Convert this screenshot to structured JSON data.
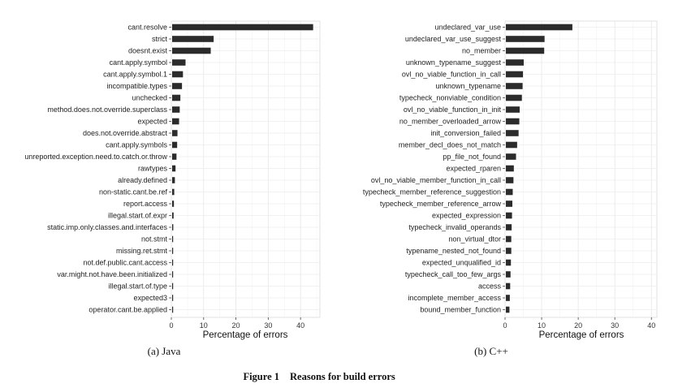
{
  "figure": {
    "caption_number": "Figure 1",
    "caption_text": "Reasons for build errors"
  },
  "chart_data": [
    {
      "type": "bar",
      "orientation": "horizontal",
      "subcaption": "(a) Java",
      "xlabel": "Percentage of errors",
      "ylabel": "",
      "xlim": [
        0,
        46
      ],
      "xticks": [
        0,
        10,
        20,
        30,
        40
      ],
      "grid": true,
      "bar_color": "#2b2b2b",
      "categories": [
        "cant.resolve",
        "strict",
        "doesnt.exist",
        "cant.apply.symbol",
        "cant.apply.symbol.1",
        "incompatible.types",
        "unchecked",
        "method.does.not.override.superclass",
        "expected",
        "does.not.override.abstract",
        "cant.apply.symbols",
        "unreported.exception.need.to.catch.or.throw",
        "rawtypes",
        "already.defined",
        "non-static.cant.be.ref",
        "report.access",
        "illegal.start.of.expr",
        "static.imp.only.classes.and.interfaces",
        "not.stmt",
        "missing.ret.stmt",
        "not.def.public.cant.access",
        "var.might.not.have.been.initialized",
        "illegal.start.of.type",
        "expected3",
        "operator.cant.be.applied"
      ],
      "values": [
        43.9,
        13.1,
        12.2,
        4.4,
        3.6,
        3.3,
        2.8,
        2.6,
        2.4,
        1.9,
        1.8,
        1.6,
        1.3,
        1.1,
        0.9,
        0.8,
        0.7,
        0.6,
        0.5,
        0.5,
        0.4,
        0.4,
        0.3,
        0.3,
        0.2
      ]
    },
    {
      "type": "bar",
      "orientation": "horizontal",
      "subcaption": "(b) C++",
      "xlabel": "Percentage of errors",
      "ylabel": "",
      "xlim": [
        0,
        41.5
      ],
      "xticks": [
        0,
        10,
        20,
        30,
        40
      ],
      "grid": true,
      "bar_color": "#2b2b2b",
      "categories": [
        "undeclared_var_use",
        "undeclared_var_use_suggest",
        "no_member",
        "unknown_typename_suggest",
        "ovl_no_viable_function_in_call",
        "unknown_typename",
        "typecheck_nonviable_condition",
        "ovl_no_viable_function_in_init",
        "no_member_overloaded_arrow",
        "init_conversion_failed",
        "member_decl_does_not_match",
        "pp_file_not_found",
        "expected_rparen",
        "ovl_no_viable_member_function_in_call",
        "typecheck_member_reference_suggestion",
        "typecheck_member_reference_arrow",
        "expected_expression",
        "typecheck_invalid_operands",
        "non_virtual_dtor",
        "typename_nested_not_found",
        "expected_unqualified_id",
        "typecheck_call_too_few_args",
        "access",
        "incomplete_member_access",
        "bound_member_function"
      ],
      "values": [
        18.4,
        10.8,
        10.7,
        5.1,
        4.9,
        4.8,
        4.6,
        4.0,
        3.9,
        3.7,
        3.3,
        3.0,
        2.4,
        2.3,
        2.1,
        2.0,
        1.9,
        1.8,
        1.7,
        1.7,
        1.6,
        1.5,
        1.4,
        1.3,
        1.2
      ]
    }
  ]
}
